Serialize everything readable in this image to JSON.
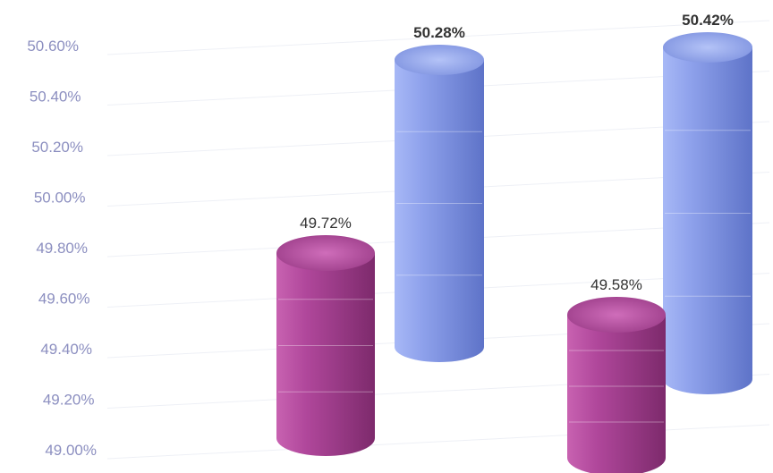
{
  "chart_data": {
    "type": "bar",
    "style": "3d-cylinder",
    "categories": [
      "",
      ""
    ],
    "series": [
      {
        "color": "#b0479b",
        "values": [
          49.72,
          49.58
        ],
        "labels": [
          "49.72%",
          "49.58%"
        ]
      },
      {
        "color": "#8fa2ec",
        "values": [
          50.28,
          50.42
        ],
        "labels": [
          "50.28%",
          "50.42%"
        ]
      }
    ],
    "yticks": [
      "49.00%",
      "49.20%",
      "49.40%",
      "49.60%",
      "49.80%",
      "50.00%",
      "50.20%",
      "50.40%",
      "50.60%"
    ],
    "ylim": [
      49.0,
      50.6
    ],
    "grid": true,
    "legend": false,
    "title": "",
    "xlabel": "",
    "ylabel": ""
  }
}
